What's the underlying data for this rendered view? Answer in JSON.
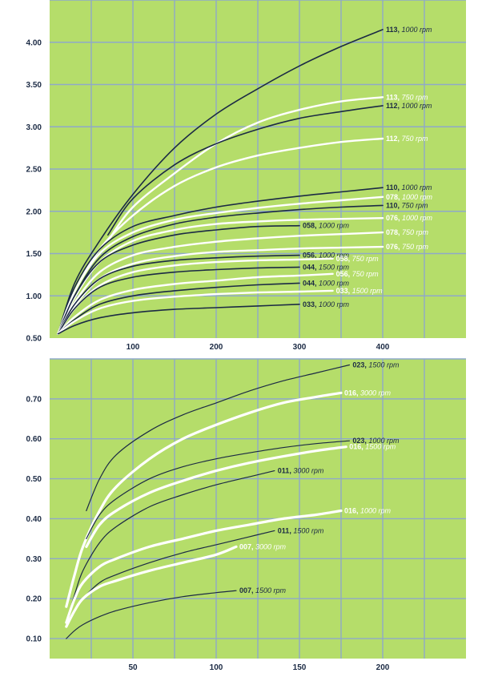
{
  "colors": {
    "background": "#b5dd6a",
    "grid": "#8fa9c9",
    "dark_curve": "#1b2a44",
    "light_curve": "#ffffff",
    "axis_text": "#1b2a44"
  },
  "chart_data": [
    {
      "type": "line",
      "title": "",
      "xlabel": "",
      "ylabel": "",
      "xlim": [
        0,
        500
      ],
      "ylim": [
        0.5,
        4.5
      ],
      "x_ticks": [
        100,
        200,
        300,
        400
      ],
      "y_ticks": [
        0.5,
        1.0,
        1.5,
        2.0,
        2.5,
        3.0,
        3.5,
        4.0
      ],
      "x_tick_labels": [
        "100",
        "200",
        "300",
        "400"
      ],
      "y_tick_labels": [
        "0.50",
        "1.00",
        "1.50",
        "2.00",
        "2.50",
        "3.00",
        "3.50",
        "4.00"
      ],
      "grid": true,
      "series": [
        {
          "name": "113",
          "rpm": "1000 rpm",
          "color": "dark",
          "x": [
            10,
            30,
            60,
            100,
            150,
            200,
            250,
            300,
            350,
            400
          ],
          "y": [
            0.55,
            1.15,
            1.65,
            2.2,
            2.75,
            3.15,
            3.45,
            3.72,
            3.95,
            4.15
          ]
        },
        {
          "name": "113",
          "rpm": "750 rpm",
          "color": "light",
          "x": [
            70,
            100,
            150,
            200,
            250,
            300,
            350,
            400
          ],
          "y": [
            1.65,
            2.05,
            2.45,
            2.8,
            3.05,
            3.2,
            3.3,
            3.35
          ]
        },
        {
          "name": "112",
          "rpm": "1000 rpm",
          "color": "dark",
          "x": [
            70,
            100,
            150,
            200,
            250,
            300,
            350,
            400
          ],
          "y": [
            1.72,
            2.15,
            2.55,
            2.8,
            2.97,
            3.1,
            3.18,
            3.25
          ]
        },
        {
          "name": "112",
          "rpm": "750 rpm",
          "color": "light",
          "x": [
            10,
            30,
            60,
            100,
            150,
            200,
            250,
            300,
            350,
            400
          ],
          "y": [
            0.55,
            1.05,
            1.55,
            1.95,
            2.3,
            2.52,
            2.66,
            2.75,
            2.82,
            2.86
          ]
        },
        {
          "name": "110",
          "rpm": "1000 rpm",
          "color": "dark",
          "x": [
            10,
            30,
            60,
            100,
            150,
            200,
            250,
            300,
            350,
            400
          ],
          "y": [
            0.55,
            1.1,
            1.55,
            1.82,
            1.95,
            2.05,
            2.12,
            2.18,
            2.23,
            2.28
          ]
        },
        {
          "name": "078",
          "rpm": "1000 rpm",
          "color": "light",
          "x": [
            10,
            30,
            60,
            100,
            150,
            200,
            250,
            300,
            350,
            400
          ],
          "y": [
            0.55,
            1.05,
            1.5,
            1.75,
            1.9,
            1.98,
            2.04,
            2.09,
            2.13,
            2.17
          ]
        },
        {
          "name": "110",
          "rpm": "750 rpm",
          "color": "dark",
          "x": [
            10,
            30,
            60,
            100,
            150,
            200,
            250,
            300,
            350,
            400
          ],
          "y": [
            0.55,
            1.0,
            1.45,
            1.7,
            1.85,
            1.93,
            1.98,
            2.02,
            2.05,
            2.07
          ]
        },
        {
          "name": "076",
          "rpm": "1000 rpm",
          "color": "light",
          "x": [
            10,
            30,
            60,
            100,
            150,
            200,
            250,
            300,
            350,
            400
          ],
          "y": [
            0.55,
            0.98,
            1.4,
            1.65,
            1.78,
            1.85,
            1.88,
            1.9,
            1.91,
            1.92
          ]
        },
        {
          "name": "058",
          "rpm": "1000 rpm",
          "color": "dark",
          "x": [
            10,
            30,
            60,
            100,
            150,
            200,
            250,
            300
          ],
          "y": [
            0.55,
            1.0,
            1.4,
            1.6,
            1.72,
            1.78,
            1.82,
            1.83
          ]
        },
        {
          "name": "078",
          "rpm": "750 rpm",
          "color": "light",
          "x": [
            10,
            30,
            60,
            100,
            150,
            200,
            250,
            300,
            350,
            400
          ],
          "y": [
            0.55,
            0.92,
            1.28,
            1.48,
            1.58,
            1.64,
            1.68,
            1.71,
            1.73,
            1.75
          ]
        },
        {
          "name": "076",
          "rpm": "750 rpm",
          "color": "light",
          "x": [
            10,
            30,
            60,
            100,
            150,
            200,
            250,
            300,
            350,
            400
          ],
          "y": [
            0.55,
            0.88,
            1.2,
            1.38,
            1.47,
            1.52,
            1.54,
            1.56,
            1.57,
            1.58
          ]
        },
        {
          "name": "056",
          "rpm": "1000 rpm",
          "color": "dark",
          "x": [
            10,
            30,
            60,
            100,
            150,
            200,
            250,
            300
          ],
          "y": [
            0.55,
            0.9,
            1.2,
            1.35,
            1.42,
            1.45,
            1.47,
            1.48
          ]
        },
        {
          "name": "058",
          "rpm": "750 rpm",
          "color": "light",
          "x": [
            10,
            30,
            60,
            100,
            150,
            200,
            250,
            300,
            340
          ],
          "y": [
            0.55,
            0.85,
            1.12,
            1.28,
            1.36,
            1.4,
            1.42,
            1.43,
            1.44
          ]
        },
        {
          "name": "044",
          "rpm": "1500 rpm",
          "color": "dark",
          "x": [
            10,
            30,
            60,
            100,
            150,
            200,
            250,
            300
          ],
          "y": [
            0.55,
            0.85,
            1.1,
            1.22,
            1.28,
            1.31,
            1.33,
            1.34
          ]
        },
        {
          "name": "056",
          "rpm": "750 rpm",
          "color": "light",
          "x": [
            10,
            30,
            60,
            100,
            150,
            200,
            250,
            300,
            340
          ],
          "y": [
            0.55,
            0.75,
            0.95,
            1.07,
            1.14,
            1.18,
            1.22,
            1.24,
            1.26
          ]
        },
        {
          "name": "044",
          "rpm": "1000 rpm",
          "color": "dark",
          "x": [
            10,
            30,
            60,
            100,
            150,
            200,
            250,
            300
          ],
          "y": [
            0.55,
            0.72,
            0.9,
            1.0,
            1.06,
            1.1,
            1.13,
            1.15
          ]
        },
        {
          "name": "033",
          "rpm": "1500 rpm",
          "color": "light",
          "x": [
            10,
            30,
            60,
            100,
            150,
            200,
            250,
            300,
            340
          ],
          "y": [
            0.55,
            0.7,
            0.85,
            0.94,
            0.99,
            1.02,
            1.04,
            1.05,
            1.06
          ]
        },
        {
          "name": "033",
          "rpm": "1000 rpm",
          "color": "dark",
          "x": [
            10,
            30,
            60,
            100,
            150,
            200,
            250,
            300
          ],
          "y": [
            0.55,
            0.65,
            0.74,
            0.8,
            0.84,
            0.86,
            0.88,
            0.9
          ]
        }
      ]
    },
    {
      "type": "line",
      "title": "",
      "xlabel": "",
      "ylabel": "",
      "xlim": [
        0,
        250
      ],
      "ylim": [
        0.05,
        0.8
      ],
      "x_ticks": [
        50,
        100,
        150,
        200
      ],
      "y_ticks": [
        0.1,
        0.2,
        0.3,
        0.4,
        0.5,
        0.6,
        0.7
      ],
      "x_tick_labels": [
        "50",
        "100",
        "150",
        "200"
      ],
      "y_tick_labels": [
        "0.10",
        "0.20",
        "0.30",
        "0.40",
        "0.50",
        "0.60",
        "0.70"
      ],
      "grid": true,
      "series": [
        {
          "name": "023",
          "rpm": "1500 rpm",
          "color": "dark",
          "x": [
            22,
            30,
            40,
            60,
            80,
            100,
            120,
            140,
            160,
            180
          ],
          "y": [
            0.42,
            0.5,
            0.56,
            0.62,
            0.66,
            0.69,
            0.72,
            0.745,
            0.765,
            0.785
          ]
        },
        {
          "name": "016",
          "rpm": "3000 rpm",
          "color": "light",
          "x": [
            10,
            15,
            20,
            30,
            40,
            60,
            80,
            100,
            120,
            140,
            160,
            175
          ],
          "y": [
            0.18,
            0.26,
            0.33,
            0.42,
            0.48,
            0.55,
            0.6,
            0.635,
            0.665,
            0.69,
            0.705,
            0.715
          ]
        },
        {
          "name": "023",
          "rpm": "1000 rpm",
          "color": "dark",
          "x": [
            22,
            30,
            40,
            60,
            80,
            100,
            120,
            140,
            160,
            180
          ],
          "y": [
            0.35,
            0.41,
            0.45,
            0.5,
            0.53,
            0.55,
            0.565,
            0.578,
            0.588,
            0.595
          ]
        },
        {
          "name": "016",
          "rpm": "1500 rpm",
          "color": "light",
          "x": [
            22,
            30,
            40,
            60,
            80,
            100,
            120,
            140,
            160,
            178
          ],
          "y": [
            0.33,
            0.385,
            0.42,
            0.465,
            0.495,
            0.52,
            0.54,
            0.556,
            0.57,
            0.58
          ]
        },
        {
          "name": "011",
          "rpm": "3000 rpm",
          "color": "dark",
          "x": [
            10,
            15,
            20,
            30,
            40,
            60,
            80,
            100,
            120,
            135
          ],
          "y": [
            0.14,
            0.21,
            0.27,
            0.34,
            0.38,
            0.43,
            0.46,
            0.485,
            0.505,
            0.52
          ]
        },
        {
          "name": "016",
          "rpm": "1000 rpm",
          "color": "light",
          "x": [
            10,
            15,
            20,
            30,
            40,
            60,
            80,
            100,
            120,
            140,
            160,
            175
          ],
          "y": [
            0.14,
            0.2,
            0.24,
            0.28,
            0.3,
            0.33,
            0.35,
            0.37,
            0.385,
            0.4,
            0.41,
            0.42
          ]
        },
        {
          "name": "011",
          "rpm": "1500 rpm",
          "color": "dark",
          "x": [
            10,
            15,
            20,
            30,
            40,
            60,
            80,
            100,
            120,
            135
          ],
          "y": [
            0.13,
            0.17,
            0.2,
            0.24,
            0.26,
            0.29,
            0.315,
            0.335,
            0.355,
            0.37
          ]
        },
        {
          "name": "007",
          "rpm": "3000 rpm",
          "color": "light",
          "x": [
            10,
            15,
            20,
            30,
            40,
            60,
            80,
            100,
            112
          ],
          "y": [
            0.13,
            0.17,
            0.2,
            0.23,
            0.245,
            0.27,
            0.29,
            0.31,
            0.33
          ]
        },
        {
          "name": "007",
          "rpm": "1500 rpm",
          "color": "dark",
          "x": [
            10,
            15,
            20,
            30,
            40,
            60,
            80,
            100,
            112
          ],
          "y": [
            0.1,
            0.12,
            0.135,
            0.155,
            0.17,
            0.19,
            0.205,
            0.215,
            0.22
          ]
        }
      ]
    }
  ]
}
